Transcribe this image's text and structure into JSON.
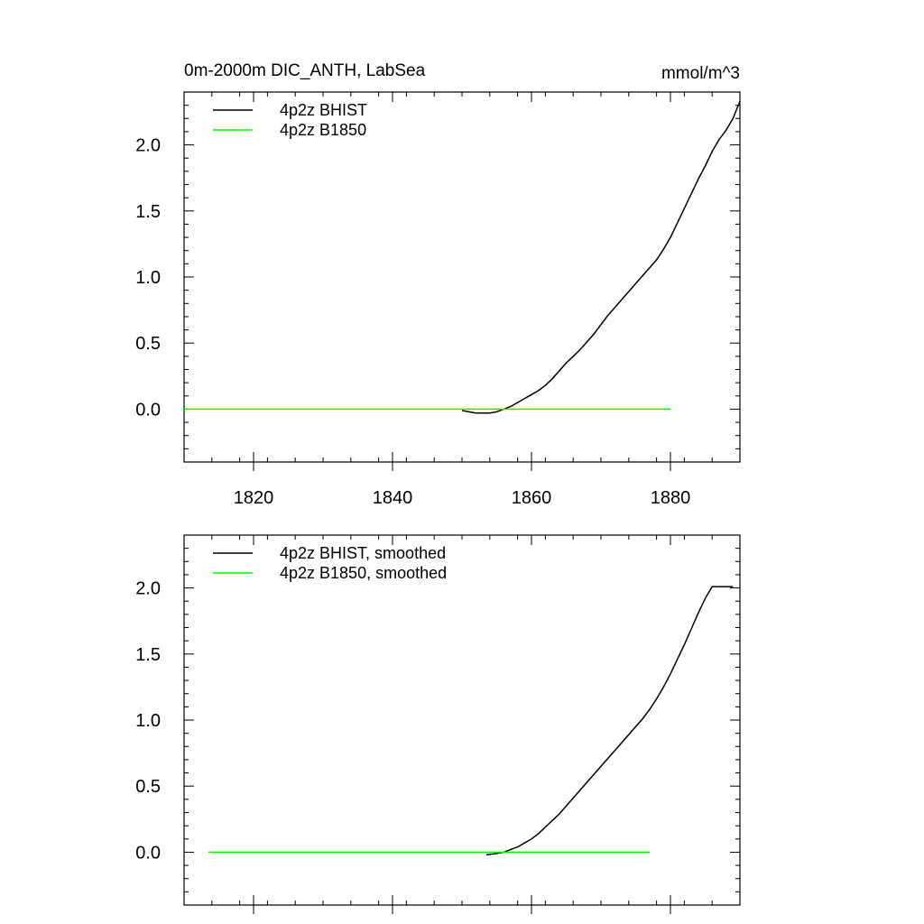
{
  "chart_data": [
    {
      "type": "line",
      "title": "0m-2000m DIC_ANTH, LabSea",
      "units": "mmol/m^3",
      "xlim": [
        1810,
        1890
      ],
      "ylim": [
        -0.4,
        2.4
      ],
      "xticks": [
        1820,
        1840,
        1860,
        1880
      ],
      "xtick_labels": [
        "1820",
        "1840",
        "1860",
        "1880"
      ],
      "yticks": [
        0.0,
        0.5,
        1.0,
        1.5,
        2.0
      ],
      "ytick_labels": [
        "0.0",
        "0.5",
        "1.0",
        "1.5",
        "2.0"
      ],
      "show_xtick_labels": true,
      "grid": false,
      "legend": "top-left",
      "series": [
        {
          "name": "4p2z BHIST",
          "color": "#000000",
          "x": [
            1850,
            1851,
            1852,
            1853,
            1854,
            1855,
            1856,
            1857,
            1858,
            1859,
            1860,
            1861,
            1862,
            1863,
            1864,
            1865,
            1866,
            1867,
            1868,
            1869,
            1870,
            1871,
            1872,
            1873,
            1874,
            1875,
            1876,
            1877,
            1878,
            1879,
            1880,
            1881,
            1882,
            1883,
            1884,
            1885,
            1886,
            1887,
            1888,
            1889,
            1890
          ],
          "y": [
            -0.01,
            -0.02,
            -0.03,
            -0.03,
            -0.03,
            -0.02,
            0.0,
            0.02,
            0.05,
            0.08,
            0.11,
            0.14,
            0.18,
            0.23,
            0.29,
            0.35,
            0.4,
            0.45,
            0.51,
            0.57,
            0.64,
            0.71,
            0.77,
            0.83,
            0.89,
            0.95,
            1.01,
            1.07,
            1.13,
            1.21,
            1.3,
            1.41,
            1.52,
            1.63,
            1.74,
            1.84,
            1.95,
            2.04,
            2.11,
            2.2,
            2.33
          ]
        },
        {
          "name": "4p2z B1850",
          "color": "#00ff00",
          "x": [
            1810,
            1880
          ],
          "y": [
            0.0,
            0.0
          ]
        }
      ]
    },
    {
      "type": "line",
      "title": "",
      "units": "",
      "xlim": [
        1810,
        1890
      ],
      "ylim": [
        -0.4,
        2.4
      ],
      "xticks": [
        1820,
        1840,
        1860,
        1880
      ],
      "xtick_labels": [],
      "yticks": [
        0.0,
        0.5,
        1.0,
        1.5,
        2.0
      ],
      "ytick_labels": [
        "0.0",
        "0.5",
        "1.0",
        "1.5",
        "2.0"
      ],
      "show_xtick_labels": false,
      "grid": false,
      "legend": "top-left",
      "series": [
        {
          "name": "4p2z BHIST, smoothed",
          "color": "#000000",
          "x": [
            1853.5,
            1855,
            1856,
            1857,
            1858,
            1859,
            1860,
            1861,
            1862,
            1863,
            1864,
            1865,
            1866,
            1867,
            1868,
            1869,
            1870,
            1871,
            1872,
            1873,
            1874,
            1875,
            1876,
            1877,
            1878,
            1879,
            1880,
            1881,
            1882,
            1883,
            1884,
            1885,
            1886,
            1887,
            1888,
            1889
          ],
          "y": [
            -0.02,
            -0.01,
            0.0,
            0.02,
            0.04,
            0.07,
            0.1,
            0.14,
            0.19,
            0.24,
            0.29,
            0.35,
            0.41,
            0.47,
            0.53,
            0.59,
            0.65,
            0.71,
            0.77,
            0.83,
            0.89,
            0.95,
            1.01,
            1.08,
            1.16,
            1.25,
            1.35,
            1.46,
            1.57,
            1.69,
            1.81,
            1.92,
            2.01,
            2.01,
            2.01,
            2.01
          ]
        },
        {
          "name": "4p2z B1850, smoothed",
          "color": "#00ff00",
          "x": [
            1813.5,
            1877
          ],
          "y": [
            0.0,
            0.0
          ]
        }
      ]
    }
  ]
}
